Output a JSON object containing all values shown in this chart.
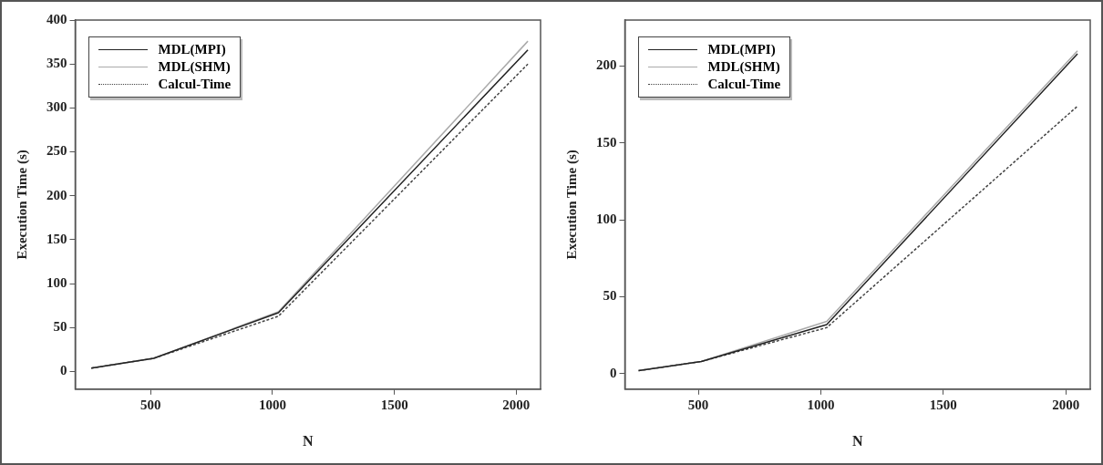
{
  "chart_data": [
    {
      "type": "line",
      "xlabel": "N",
      "ylabel": "Execution Time (s)",
      "x": [
        256,
        512,
        1024,
        2048
      ],
      "xlim": [
        190,
        2100
      ],
      "xticks": [
        500,
        1000,
        1500,
        2000
      ],
      "ylim": [
        -20,
        400
      ],
      "yticks": [
        0,
        50,
        100,
        150,
        200,
        250,
        300,
        350,
        400
      ],
      "grid": false,
      "legend": "top left",
      "marker": "none",
      "series": [
        {
          "name": "MDL(MPI)",
          "color": "#222222",
          "line_style": "solid",
          "values": [
            4,
            15,
            67,
            366
          ]
        },
        {
          "name": "MDL(SHM)",
          "color": "#aaaaaa",
          "line_style": "solid",
          "values": [
            4,
            15,
            68,
            376
          ]
        },
        {
          "name": "Calcul-Time",
          "color": "#444444",
          "line_style": "dotted",
          "values": [
            4,
            15,
            63,
            350
          ]
        }
      ]
    },
    {
      "type": "line",
      "xlabel": "N",
      "ylabel": "Execution Time (s)",
      "x": [
        256,
        512,
        1024,
        2048
      ],
      "xlim": [
        200,
        2100
      ],
      "xticks": [
        500,
        1000,
        1500,
        2000
      ],
      "ylim": [
        -10,
        230
      ],
      "yticks": [
        0,
        50,
        100,
        150,
        200
      ],
      "grid": false,
      "legend": "top left",
      "marker": "none",
      "series": [
        {
          "name": "MDL(MPI)",
          "color": "#222222",
          "line_style": "solid",
          "values": [
            2,
            8,
            32,
            208
          ]
        },
        {
          "name": "MDL(SHM)",
          "color": "#aaaaaa",
          "line_style": "solid",
          "values": [
            2,
            8,
            34,
            210
          ]
        },
        {
          "name": "Calcul-Time",
          "color": "#444444",
          "line_style": "dotted",
          "values": [
            2,
            8,
            30,
            174
          ]
        }
      ]
    }
  ]
}
